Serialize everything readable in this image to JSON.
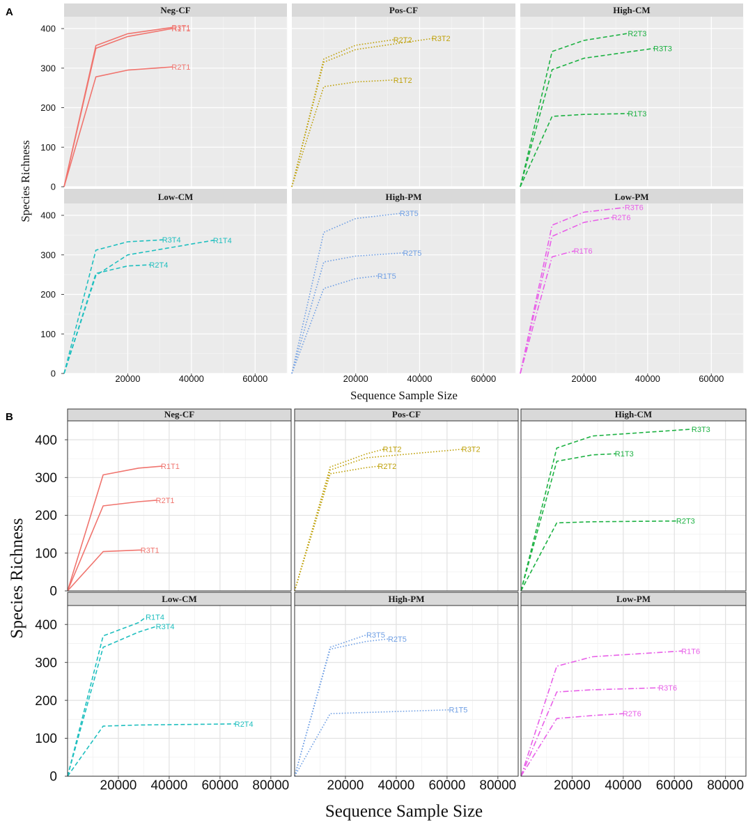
{
  "figure": {
    "panel_a": {
      "letter": "A",
      "ylabel": "Species Richness",
      "xlabel": "Sequence Sample Size"
    },
    "panel_b": {
      "letter": "B",
      "ylabel": "Species Richness",
      "xlabel": "Sequence Sample Size"
    }
  },
  "colors": {
    "Neg-CF": "#f0746e",
    "Pos-CF": "#bfa10a",
    "High-CM": "#1cb142",
    "Low-CM": "#1fbfbf",
    "High-PM": "#6f9fe4",
    "Low-PM": "#e85fe8"
  },
  "chart_data": [
    {
      "type": "line",
      "panel": "A",
      "xlabel": "Sequence Sample Size",
      "ylabel": "Species Richness",
      "xlim": [
        0,
        70000
      ],
      "ylim": [
        0,
        430
      ],
      "xticks": [
        20000,
        40000,
        60000
      ],
      "yticks": [
        0,
        100,
        200,
        300,
        400
      ],
      "xtick_labels": [
        "20000",
        "40000",
        "60000"
      ],
      "ytick_labels": [
        "0",
        "100",
        "200",
        "300",
        "400"
      ],
      "facets": [
        {
          "title": "Neg-CF",
          "color": "#f0746e",
          "linestyle": "solid",
          "series": [
            {
              "name": "R2T1",
              "x": [
                0,
                10000,
                20000,
                34000
              ],
              "y": [
                0,
                278,
                295,
                303
              ]
            },
            {
              "name": "R1T1",
              "x": [
                0,
                10000,
                20000,
                34000
              ],
              "y": [
                0,
                350,
                380,
                400
              ]
            },
            {
              "name": "R3T1",
              "x": [
                0,
                10000,
                20000,
                34000
              ],
              "y": [
                0,
                357,
                387,
                403
              ]
            }
          ]
        },
        {
          "title": "Pos-CF",
          "color": "#bfa10a",
          "linestyle": "dotted",
          "series": [
            {
              "name": "R1T2",
              "x": [
                0,
                10000,
                20000,
                32000
              ],
              "y": [
                0,
                253,
                265,
                270
              ]
            },
            {
              "name": "R2T2",
              "x": [
                0,
                10000,
                20000,
                32000
              ],
              "y": [
                0,
                323,
                358,
                372
              ]
            },
            {
              "name": "R3T2",
              "x": [
                0,
                10000,
                20000,
                44000
              ],
              "y": [
                0,
                315,
                347,
                375
              ]
            }
          ]
        },
        {
          "title": "High-CM",
          "color": "#1cb142",
          "linestyle": "dashed",
          "series": [
            {
              "name": "R1T3",
              "x": [
                0,
                10000,
                20000,
                34000
              ],
              "y": [
                0,
                178,
                183,
                185
              ]
            },
            {
              "name": "R2T3",
              "x": [
                0,
                10000,
                20000,
                34000
              ],
              "y": [
                0,
                342,
                370,
                388
              ]
            },
            {
              "name": "R3T3",
              "x": [
                0,
                10000,
                20000,
                42000
              ],
              "y": [
                0,
                296,
                325,
                350
              ]
            }
          ]
        },
        {
          "title": "Low-CM",
          "color": "#1fbfbf",
          "linestyle": "dashed",
          "series": [
            {
              "name": "R1T4",
              "x": [
                0,
                10000,
                20000,
                47000
              ],
              "y": [
                0,
                248,
                300,
                337
              ]
            },
            {
              "name": "R2T4",
              "x": [
                0,
                10000,
                20000,
                27000
              ],
              "y": [
                0,
                253,
                272,
                275
              ]
            },
            {
              "name": "R3T4",
              "x": [
                0,
                10000,
                20000,
                31000
              ],
              "y": [
                0,
                312,
                333,
                338
              ]
            }
          ]
        },
        {
          "title": "High-PM",
          "color": "#6f9fe4",
          "linestyle": "dotted",
          "series": [
            {
              "name": "R1T5",
              "x": [
                0,
                10000,
                20000,
                27000
              ],
              "y": [
                0,
                215,
                240,
                247
              ]
            },
            {
              "name": "R2T5",
              "x": [
                0,
                10000,
                20000,
                35000
              ],
              "y": [
                0,
                282,
                297,
                305
              ]
            },
            {
              "name": "R3T5",
              "x": [
                0,
                10000,
                20000,
                34000
              ],
              "y": [
                0,
                357,
                392,
                405
              ]
            }
          ]
        },
        {
          "title": "Low-PM",
          "color": "#e85fe8",
          "linestyle": "dotdash",
          "series": [
            {
              "name": "R1T6",
              "x": [
                0,
                10000,
                17000
              ],
              "y": [
                0,
                295,
                310
              ]
            },
            {
              "name": "R2T6",
              "x": [
                0,
                10000,
                20000,
                29000
              ],
              "y": [
                0,
                347,
                382,
                395
              ]
            },
            {
              "name": "R3T6",
              "x": [
                0,
                10000,
                20000,
                33000
              ],
              "y": [
                0,
                375,
                408,
                420
              ]
            }
          ]
        }
      ]
    },
    {
      "type": "line",
      "panel": "B",
      "xlabel": "Sequence Sample Size",
      "ylabel": "Species Richness",
      "xlim": [
        0,
        88000
      ],
      "ylim": [
        0,
        450
      ],
      "xticks": [
        20000,
        40000,
        60000,
        80000
      ],
      "yticks": [
        0,
        100,
        200,
        300,
        400
      ],
      "xtick_labels": [
        "20000",
        "40000",
        "60000",
        "80000"
      ],
      "ytick_labels": [
        "0",
        "100",
        "200",
        "300",
        "400"
      ],
      "facets": [
        {
          "title": "Neg-CF",
          "color": "#f0746e",
          "linestyle": "solid",
          "series": [
            {
              "name": "R1T1",
              "x": [
                0,
                14000,
                28000,
                37000
              ],
              "y": [
                0,
                307,
                325,
                330
              ]
            },
            {
              "name": "R2T1",
              "x": [
                0,
                14000,
                28000,
                35000
              ],
              "y": [
                0,
                225,
                236,
                240
              ]
            },
            {
              "name": "R3T1",
              "x": [
                0,
                14000,
                28000,
                29000
              ],
              "y": [
                0,
                104,
                108,
                108
              ]
            }
          ]
        },
        {
          "title": "Pos-CF",
          "color": "#bfa10a",
          "linestyle": "dotted",
          "series": [
            {
              "name": "R1T2",
              "x": [
                0,
                14000,
                28000,
                35000
              ],
              "y": [
                0,
                328,
                362,
                375
              ]
            },
            {
              "name": "R2T2",
              "x": [
                0,
                14000,
                28000,
                33000
              ],
              "y": [
                0,
                310,
                326,
                330
              ]
            },
            {
              "name": "R3T2",
              "x": [
                0,
                14000,
                28000,
                66000
              ],
              "y": [
                0,
                320,
                352,
                375
              ]
            }
          ]
        },
        {
          "title": "High-CM",
          "color": "#1cb142",
          "linestyle": "dashed",
          "series": [
            {
              "name": "R1T3",
              "x": [
                0,
                14000,
                28000,
                37000
              ],
              "y": [
                0,
                343,
                360,
                363
              ]
            },
            {
              "name": "R2T3",
              "x": [
                0,
                14000,
                28000,
                61000
              ],
              "y": [
                0,
                180,
                183,
                185
              ]
            },
            {
              "name": "R3T3",
              "x": [
                0,
                14000,
                28000,
                67000
              ],
              "y": [
                0,
                378,
                410,
                428
              ]
            }
          ]
        },
        {
          "title": "Low-CM",
          "color": "#1fbfbf",
          "linestyle": "dashed",
          "series": [
            {
              "name": "R1T4",
              "x": [
                0,
                14000,
                28000,
                31000
              ],
              "y": [
                0,
                370,
                405,
                420
              ]
            },
            {
              "name": "R2T4",
              "x": [
                0,
                14000,
                28000,
                66000
              ],
              "y": [
                0,
                132,
                135,
                138
              ]
            },
            {
              "name": "R3T4",
              "x": [
                0,
                14000,
                28000,
                35000
              ],
              "y": [
                0,
                340,
                380,
                395
              ]
            }
          ]
        },
        {
          "title": "High-PM",
          "color": "#6f9fe4",
          "linestyle": "dotted",
          "series": [
            {
              "name": "R1T5",
              "x": [
                0,
                14000,
                28000,
                61000
              ],
              "y": [
                0,
                165,
                168,
                175
              ]
            },
            {
              "name": "R2T5",
              "x": [
                0,
                14000,
                28000,
                37000
              ],
              "y": [
                0,
                335,
                355,
                362
              ]
            },
            {
              "name": "R3T5",
              "x": [
                0,
                14000,
                28000,
                28500
              ],
              "y": [
                0,
                340,
                372,
                373
              ]
            }
          ]
        },
        {
          "title": "Low-PM",
          "color": "#e85fe8",
          "linestyle": "dotdash",
          "series": [
            {
              "name": "R1T6",
              "x": [
                0,
                14000,
                28000,
                63000
              ],
              "y": [
                0,
                290,
                315,
                330
              ]
            },
            {
              "name": "R2T6",
              "x": [
                0,
                14000,
                28000,
                40000
              ],
              "y": [
                0,
                152,
                160,
                165
              ]
            },
            {
              "name": "R3T6",
              "x": [
                0,
                14000,
                28000,
                54000
              ],
              "y": [
                0,
                222,
                228,
                233
              ]
            }
          ]
        }
      ]
    }
  ]
}
